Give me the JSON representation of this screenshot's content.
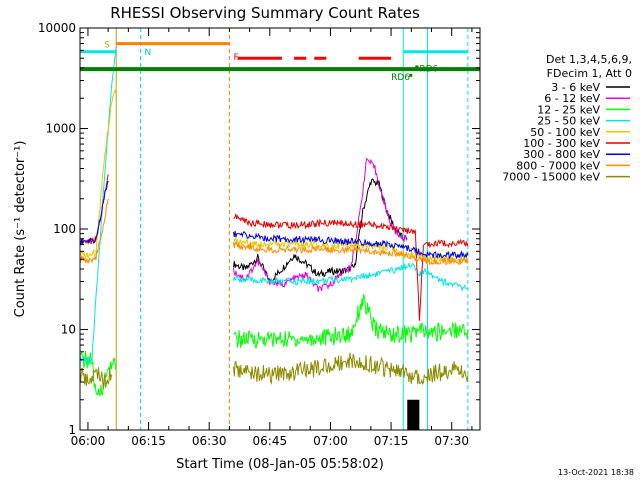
{
  "chart_data": {
    "type": "line",
    "title": "RHESSI Observing Summary Count Rates",
    "xlabel": "Start Time (08-Jan-05 05:58:02)",
    "ylabel": "Count Rate (s⁻¹ detector⁻¹)",
    "y_scale": "log",
    "ylim": [
      1,
      10000
    ],
    "xlim": [
      "05:58:02",
      "07:37:00"
    ],
    "x_tick_labels": [
      "06:00",
      "06:15",
      "06:30",
      "06:45",
      "07:00",
      "07:15",
      "07:30"
    ],
    "y_tick_labels": [
      "1",
      "10",
      "100",
      "1000",
      "10000"
    ],
    "legend_position": "right",
    "legend_header": [
      "Det 1,3,4,5,6,9,",
      "FDecim 1, Att 0"
    ],
    "footer_date": "13-Oct-2021 18:38",
    "colors": {
      "3 - 6 keV": "#000000",
      "6 - 12 keV": "#e600e6",
      "12 - 25 keV": "#00ff00",
      "25 - 50 keV": "#00e6e6",
      "50 - 100 keV": "#e6c800",
      "100 - 300 keV": "#e60000",
      "300 - 800 keV": "#0000e6",
      "800 - 7000 keV": "#ff8c00",
      "7000 - 15000 keV": "#8c8c00",
      "night": "#008000",
      "saa": "#00e6e6",
      "flare": "#ff0000",
      "decimation": "#ff8000",
      "attenuator_block": "#000000"
    },
    "series": [
      {
        "name": "3 - 6 keV",
        "points": [
          [
            "06:36",
            45
          ],
          [
            "06:39",
            40
          ],
          [
            "06:42",
            52
          ],
          [
            "06:45",
            30
          ],
          [
            "06:48",
            40
          ],
          [
            "06:51",
            55
          ],
          [
            "06:54",
            45
          ],
          [
            "06:57",
            35
          ],
          [
            "07:00",
            38
          ],
          [
            "07:03",
            38
          ],
          [
            "07:06",
            42
          ],
          [
            "07:08",
            150
          ],
          [
            "07:10",
            300
          ],
          [
            "07:12",
            280
          ],
          [
            "07:14",
            150
          ],
          [
            "07:16",
            100
          ],
          [
            "07:18",
            80
          ],
          [
            "07:19",
            80
          ]
        ]
      },
      {
        "name": "6 - 12 keV",
        "points": [
          [
            "06:36",
            38
          ],
          [
            "06:39",
            32
          ],
          [
            "06:42",
            48
          ],
          [
            "06:45",
            30
          ],
          [
            "06:48",
            28
          ],
          [
            "06:51",
            32
          ],
          [
            "06:54",
            35
          ],
          [
            "06:57",
            25
          ],
          [
            "07:00",
            28
          ],
          [
            "07:03",
            38
          ],
          [
            "07:05",
            40
          ],
          [
            "07:07",
            120
          ],
          [
            "07:09",
            500
          ],
          [
            "07:11",
            400
          ],
          [
            "07:13",
            200
          ],
          [
            "07:15",
            110
          ],
          [
            "07:17",
            85
          ],
          [
            "07:19",
            80
          ]
        ]
      },
      {
        "name": "12 - 25 keV",
        "points": [
          [
            "05:58",
            5
          ],
          [
            "06:01",
            5
          ],
          [
            "06:02",
            2
          ],
          [
            "06:04",
            3
          ],
          [
            "06:06",
            5
          ],
          [
            "06:07",
            4
          ],
          [
            "06:36",
            8
          ],
          [
            "06:45",
            8
          ],
          [
            "06:55",
            8
          ],
          [
            "07:05",
            9
          ],
          [
            "07:08",
            20
          ],
          [
            "07:11",
            10
          ],
          [
            "07:15",
            9
          ],
          [
            "07:20",
            9
          ],
          [
            "07:22",
            10
          ],
          [
            "07:24",
            9
          ],
          [
            "07:30",
            10
          ],
          [
            "07:34",
            10
          ]
        ]
      },
      {
        "name": "25 - 50 keV",
        "points": [
          [
            "05:58",
            5
          ],
          [
            "06:01",
            5
          ],
          [
            "06:02",
            20
          ],
          [
            "06:04",
            300
          ],
          [
            "06:06",
            3000
          ],
          [
            "06:07",
            6500
          ],
          [
            "06:36",
            32
          ],
          [
            "06:45",
            30
          ],
          [
            "06:55",
            30
          ],
          [
            "07:05",
            32
          ],
          [
            "07:10",
            35
          ],
          [
            "07:15",
            38
          ],
          [
            "07:20",
            45
          ],
          [
            "07:22",
            35
          ],
          [
            "07:24",
            38
          ],
          [
            "07:28",
            30
          ],
          [
            "07:34",
            25
          ]
        ]
      },
      {
        "name": "50 - 100 keV",
        "points": [
          [
            "05:58",
            55
          ],
          [
            "06:01",
            55
          ],
          [
            "06:02",
            60
          ],
          [
            "06:04",
            500
          ],
          [
            "06:06",
            2000
          ],
          [
            "06:07",
            2600
          ],
          [
            "06:36",
            75
          ],
          [
            "06:45",
            70
          ],
          [
            "06:55",
            70
          ],
          [
            "07:05",
            68
          ],
          [
            "07:15",
            65
          ],
          [
            "07:18",
            55
          ],
          [
            "07:22",
            55
          ],
          [
            "07:24",
            50
          ],
          [
            "07:30",
            50
          ],
          [
            "07:34",
            50
          ]
        ]
      },
      {
        "name": "100 - 300 keV",
        "points": [
          [
            "05:58",
            75
          ],
          [
            "06:01",
            75
          ],
          [
            "06:02",
            80
          ],
          [
            "06:04",
            200
          ],
          [
            "06:05",
            350
          ],
          [
            "06:36",
            135
          ],
          [
            "06:40",
            115
          ],
          [
            "06:50",
            108
          ],
          [
            "07:00",
            115
          ],
          [
            "07:10",
            110
          ],
          [
            "07:18",
            100
          ],
          [
            "07:21",
            90
          ],
          [
            "07:22",
            12
          ],
          [
            "07:23",
            70
          ],
          [
            "07:28",
            72
          ],
          [
            "07:34",
            72
          ]
        ]
      },
      {
        "name": "300 - 800 keV",
        "points": [
          [
            "05:58",
            75
          ],
          [
            "06:01",
            75
          ],
          [
            "06:02",
            80
          ],
          [
            "06:04",
            200
          ],
          [
            "06:05",
            300
          ],
          [
            "06:36",
            90
          ],
          [
            "06:45",
            80
          ],
          [
            "06:55",
            78
          ],
          [
            "07:05",
            75
          ],
          [
            "07:15",
            70
          ],
          [
            "07:19",
            65
          ],
          [
            "07:22",
            60
          ],
          [
            "07:24",
            55
          ],
          [
            "07:30",
            55
          ],
          [
            "07:34",
            55
          ]
        ]
      },
      {
        "name": "800 - 7000 keV",
        "points": [
          [
            "05:58",
            50
          ],
          [
            "06:01",
            50
          ],
          [
            "06:02",
            52
          ],
          [
            "06:04",
            120
          ],
          [
            "06:05",
            200
          ],
          [
            "06:36",
            70
          ],
          [
            "06:45",
            62
          ],
          [
            "06:55",
            63
          ],
          [
            "07:05",
            62
          ],
          [
            "07:15",
            58
          ],
          [
            "07:19",
            55
          ],
          [
            "07:22",
            50
          ],
          [
            "07:24",
            48
          ],
          [
            "07:30",
            48
          ],
          [
            "07:34",
            48
          ]
        ]
      },
      {
        "name": "7000 - 15000 keV",
        "points": [
          [
            "05:58",
            3.5
          ],
          [
            "06:01",
            3
          ],
          [
            "06:02",
            4
          ],
          [
            "06:04",
            3
          ],
          [
            "06:06",
            3.5
          ],
          [
            "06:36",
            4
          ],
          [
            "06:45",
            3.5
          ],
          [
            "06:55",
            4
          ],
          [
            "07:05",
            5
          ],
          [
            "07:15",
            4
          ],
          [
            "07:20",
            3.5
          ],
          [
            "07:24",
            3.5
          ],
          [
            "07:30",
            4
          ],
          [
            "07:34",
            3.5
          ]
        ]
      }
    ],
    "attenuator_block": {
      "x": [
        "07:19",
        "07:22"
      ],
      "y_top": 2
    },
    "vertical_markers": [
      {
        "time": "05:58:02",
        "color": "#00e6e6",
        "style": "solid"
      },
      {
        "time": "06:07",
        "color": "#c8a000",
        "style": "solid"
      },
      {
        "time": "06:13",
        "color": "#00e6e6",
        "style": "dashed"
      },
      {
        "time": "06:35",
        "color": "#ff8000",
        "style": "dashed"
      },
      {
        "time": "07:18",
        "color": "#00e6e6",
        "style": "solid"
      },
      {
        "time": "07:24",
        "color": "#00e6e6",
        "style": "solid"
      },
      {
        "time": "07:34",
        "color": "#00e6e6",
        "style": "dashed"
      }
    ],
    "flag_bars": [
      {
        "name": "night",
        "color": "#008000",
        "start": "05:58",
        "end": "07:37",
        "level": 3900,
        "label": "",
        "width": 4
      },
      {
        "name": "saa",
        "color": "#00e6e6",
        "start": "05:58",
        "end": "06:07",
        "level": 5800,
        "label": "",
        "width": 3
      },
      {
        "name": "saa",
        "color": "#00e6e6",
        "start": "07:18",
        "end": "07:34",
        "level": 5800,
        "label": "",
        "width": 3
      },
      {
        "name": "decimation",
        "color": "#ff8000",
        "start": "06:07",
        "end": "06:35",
        "level": 7000,
        "label": "",
        "width": 3
      },
      {
        "name": "flare",
        "color": "#ff0000",
        "start": "06:37",
        "end": "06:48",
        "level": 5000,
        "label": "",
        "width": 3
      },
      {
        "name": "flare",
        "color": "#ff0000",
        "start": "06:51",
        "end": "06:54",
        "level": 5000,
        "label": "",
        "width": 3
      },
      {
        "name": "flare",
        "color": "#ff0000",
        "start": "06:56",
        "end": "06:59",
        "level": 5000,
        "label": "",
        "width": 3
      },
      {
        "name": "flare",
        "color": "#ff0000",
        "start": "07:07",
        "end": "07:15",
        "level": 5000,
        "label": "",
        "width": 3
      }
    ],
    "flag_labels": [
      {
        "text": "S",
        "color": "#c8a000",
        "time": "06:04",
        "level": 6400
      },
      {
        "text": "N",
        "color": "#00c8c8",
        "time": "06:14",
        "level": 5400
      },
      {
        "text": "F",
        "color": "#ff0000",
        "time": "06:36",
        "level": 4800
      },
      {
        "text": "RD6",
        "color": "#008000",
        "time": "07:15",
        "level": 3050
      },
      {
        "text": "RD6",
        "color": "#008000",
        "time": "07:22",
        "level": 3700
      }
    ]
  }
}
